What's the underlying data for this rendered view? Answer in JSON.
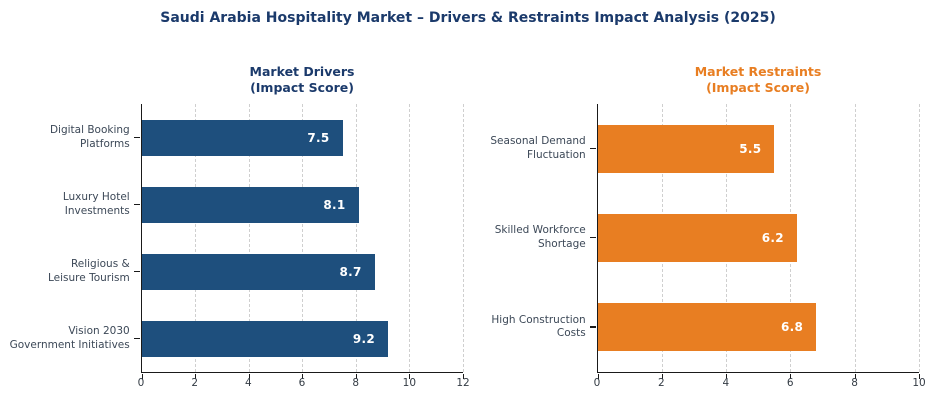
{
  "title": "Saudi Arabia Hospitality Market – Drivers & Restraints Impact Analysis (2025)",
  "title_color": "#1B3A6B",
  "background_color": "#FFFFFF",
  "styles": {
    "grid_color": "#CFCFCF",
    "axis_color": "#1A1A1A",
    "category_text_color": "#3C4857",
    "tick_text_color": "#333B44"
  },
  "chart_data": [
    {
      "type": "bar",
      "orientation": "horizontal",
      "title": "Market Drivers\n(Impact Score)",
      "accent_color": "#1B3A6B",
      "bar_color": "#1E4F7D",
      "value_label_color": "#FFFFFF",
      "categories": [
        "Digital Booking\nPlatforms",
        "Luxury Hotel\nInvestments",
        "Religious &\nLeisure Tourism",
        "Vision 2030\nGovernment Initiatives"
      ],
      "values": [
        7.5,
        8.1,
        8.7,
        9.2
      ],
      "value_labels": [
        "7.5",
        "8.1",
        "8.7",
        "9.2"
      ],
      "xlim": [
        0,
        12
      ],
      "xticks": [
        0,
        2,
        4,
        6,
        8,
        10,
        12
      ],
      "grid": "vertical-dashed",
      "legend": "none"
    },
    {
      "type": "bar",
      "orientation": "horizontal",
      "title": "Market Restraints\n(Impact Score)",
      "accent_color": "#E87E22",
      "bar_color": "#E87E22",
      "value_label_color": "#FFFFFF",
      "categories": [
        "Seasonal Demand\nFluctuation",
        "Skilled Workforce\nShortage",
        "High Construction\nCosts"
      ],
      "values": [
        5.5,
        6.2,
        6.8
      ],
      "value_labels": [
        "5.5",
        "6.2",
        "6.8"
      ],
      "xlim": [
        0,
        10
      ],
      "xticks": [
        0,
        2,
        4,
        6,
        8,
        10
      ],
      "grid": "vertical-dashed",
      "legend": "none"
    }
  ]
}
